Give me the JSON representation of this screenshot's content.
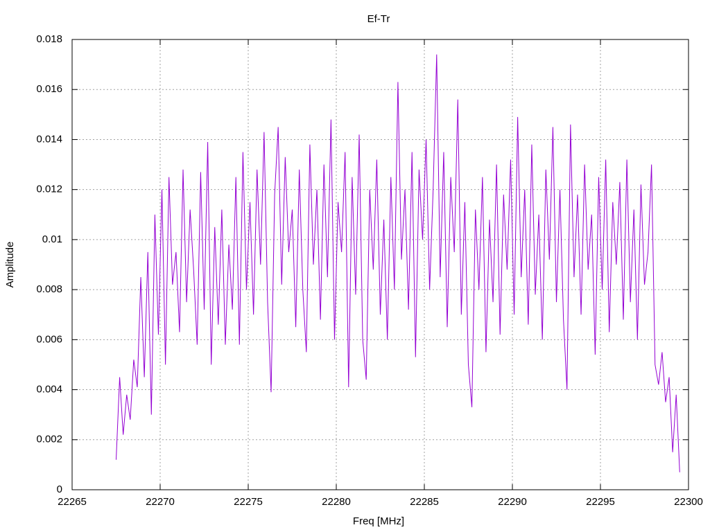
{
  "chart_data": {
    "type": "line",
    "title": "Ef-Tr",
    "xlabel": "Freq [MHz]",
    "ylabel": "Amplitude",
    "color": "#9400d3",
    "grid": true,
    "xlim": [
      22265,
      22300
    ],
    "xticks": [
      22265,
      22270,
      22275,
      22280,
      22285,
      22290,
      22295,
      22300
    ],
    "ylim": [
      0,
      0.018
    ],
    "yticks": [
      0,
      0.002,
      0.004,
      0.006,
      0.008,
      0.01,
      0.012,
      0.014,
      0.016,
      0.018
    ],
    "x": [
      22267.5,
      22267.7,
      22267.9,
      22268.1,
      22268.3,
      22268.5,
      22268.7,
      22268.9,
      22269.1,
      22269.3,
      22269.5,
      22269.7,
      22269.9,
      22270.1,
      22270.3,
      22270.5,
      22270.7,
      22270.9,
      22271.1,
      22271.3,
      22271.5,
      22271.7,
      22271.9,
      22272.1,
      22272.3,
      22272.5,
      22272.7,
      22272.9,
      22273.1,
      22273.3,
      22273.5,
      22273.7,
      22273.9,
      22274.1,
      22274.3,
      22274.5,
      22274.7,
      22274.9,
      22275.1,
      22275.3,
      22275.5,
      22275.7,
      22275.9,
      22276.1,
      22276.3,
      22276.5,
      22276.7,
      22276.9,
      22277.1,
      22277.3,
      22277.5,
      22277.7,
      22277.9,
      22278.1,
      22278.3,
      22278.5,
      22278.7,
      22278.9,
      22279.1,
      22279.3,
      22279.5,
      22279.7,
      22279.9,
      22280.1,
      22280.3,
      22280.5,
      22280.7,
      22280.9,
      22281.1,
      22281.3,
      22281.5,
      22281.7,
      22281.9,
      22282.1,
      22282.3,
      22282.5,
      22282.7,
      22282.9,
      22283.1,
      22283.3,
      22283.5,
      22283.7,
      22283.9,
      22284.1,
      22284.3,
      22284.5,
      22284.7,
      22284.9,
      22285.1,
      22285.3,
      22285.5,
      22285.7,
      22285.9,
      22286.1,
      22286.3,
      22286.5,
      22286.7,
      22286.9,
      22287.1,
      22287.3,
      22287.5,
      22287.7,
      22287.9,
      22288.1,
      22288.3,
      22288.5,
      22288.7,
      22288.9,
      22289.1,
      22289.3,
      22289.5,
      22289.7,
      22289.9,
      22290.1,
      22290.3,
      22290.5,
      22290.7,
      22290.9,
      22291.1,
      22291.3,
      22291.5,
      22291.7,
      22291.9,
      22292.1,
      22292.3,
      22292.5,
      22292.7,
      22292.9,
      22293.1,
      22293.3,
      22293.5,
      22293.7,
      22293.9,
      22294.1,
      22294.3,
      22294.5,
      22294.7,
      22294.9,
      22295.1,
      22295.3,
      22295.5,
      22295.7,
      22295.9,
      22296.1,
      22296.3,
      22296.5,
      22296.7,
      22296.9,
      22297.1,
      22297.3,
      22297.5,
      22297.7,
      22297.9,
      22298.1,
      22298.3,
      22298.5,
      22298.7,
      22298.9,
      22299.1,
      22299.3,
      22299.5
    ],
    "values": [
      0.0012,
      0.0045,
      0.0022,
      0.0038,
      0.0028,
      0.0052,
      0.0041,
      0.0085,
      0.0045,
      0.0095,
      0.003,
      0.011,
      0.0062,
      0.012,
      0.005,
      0.0125,
      0.0082,
      0.0095,
      0.0063,
      0.0128,
      0.0075,
      0.0112,
      0.0088,
      0.0058,
      0.0127,
      0.0072,
      0.0139,
      0.005,
      0.0105,
      0.0066,
      0.0112,
      0.0058,
      0.0098,
      0.0072,
      0.0125,
      0.0058,
      0.0135,
      0.008,
      0.0115,
      0.007,
      0.0128,
      0.009,
      0.0143,
      0.0075,
      0.0039,
      0.0118,
      0.0145,
      0.0082,
      0.0133,
      0.0095,
      0.0112,
      0.0065,
      0.0128,
      0.008,
      0.0055,
      0.0138,
      0.009,
      0.012,
      0.0068,
      0.013,
      0.0085,
      0.0148,
      0.006,
      0.0115,
      0.0095,
      0.0135,
      0.0041,
      0.0125,
      0.0078,
      0.0142,
      0.006,
      0.0044,
      0.012,
      0.0088,
      0.0132,
      0.007,
      0.0108,
      0.006,
      0.0125,
      0.008,
      0.0163,
      0.0092,
      0.012,
      0.0072,
      0.0135,
      0.0053,
      0.0128,
      0.01,
      0.014,
      0.008,
      0.012,
      0.0174,
      0.0085,
      0.0135,
      0.0065,
      0.0125,
      0.0095,
      0.0156,
      0.007,
      0.0115,
      0.005,
      0.0033,
      0.0112,
      0.008,
      0.0125,
      0.0055,
      0.0108,
      0.0075,
      0.013,
      0.0062,
      0.0118,
      0.0088,
      0.0132,
      0.007,
      0.0149,
      0.0085,
      0.012,
      0.0066,
      0.0138,
      0.0078,
      0.011,
      0.006,
      0.0128,
      0.0092,
      0.0145,
      0.0075,
      0.012,
      0.0068,
      0.004,
      0.0146,
      0.0085,
      0.0118,
      0.007,
      0.013,
      0.0088,
      0.011,
      0.0054,
      0.0125,
      0.008,
      0.0132,
      0.0063,
      0.0115,
      0.009,
      0.0123,
      0.0068,
      0.0132,
      0.0075,
      0.0112,
      0.006,
      0.0122,
      0.0082,
      0.0095,
      0.013,
      0.005,
      0.0042,
      0.0055,
      0.0035,
      0.0045,
      0.0015,
      0.0038,
      0.0007
    ]
  }
}
